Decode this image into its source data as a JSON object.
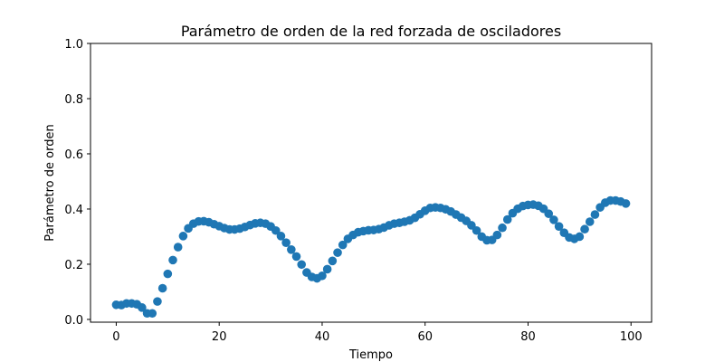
{
  "chart_data": {
    "type": "scatter",
    "title": "Parámetro de orden de la red forzada de osciladores",
    "xlabel": "Tiempo",
    "ylabel": "Parámetro de orden",
    "xlim": [
      -5,
      104
    ],
    "ylim": [
      -0.01,
      1.0
    ],
    "xticks": [
      0,
      20,
      40,
      60,
      80,
      100
    ],
    "xtick_labels": [
      "0",
      "20",
      "40",
      "60",
      "80",
      "100"
    ],
    "yticks": [
      0.0,
      0.2,
      0.4,
      0.6,
      0.8,
      1.0
    ],
    "ytick_labels": [
      "0.0",
      "0.2",
      "0.4",
      "0.6",
      "0.8",
      "1.0"
    ],
    "grid": false,
    "marker_color": "#1f77b4",
    "series": [
      {
        "x": [
          0,
          1,
          2,
          3,
          4,
          5,
          6,
          7,
          8,
          9,
          10,
          11,
          12,
          13,
          14,
          15,
          16,
          17,
          18,
          19,
          20,
          21,
          22,
          23,
          24,
          25,
          26,
          27,
          28,
          29,
          30,
          31,
          32,
          33,
          34,
          35,
          36,
          37,
          38,
          39,
          40,
          41,
          42,
          43,
          44,
          45,
          46,
          47,
          48,
          49,
          50,
          51,
          52,
          53,
          54,
          55,
          56,
          57,
          58,
          59,
          60,
          61,
          62,
          63,
          64,
          65,
          66,
          67,
          68,
          69,
          70,
          71,
          72,
          73,
          74,
          75,
          76,
          77,
          78,
          79,
          80,
          81,
          82,
          83,
          84,
          85,
          86,
          87,
          88,
          89,
          90,
          91,
          92,
          93,
          94,
          95,
          96,
          97,
          98,
          99
        ],
        "y": [
          0.053,
          0.052,
          0.058,
          0.058,
          0.055,
          0.043,
          0.022,
          0.022,
          0.065,
          0.113,
          0.165,
          0.215,
          0.262,
          0.302,
          0.33,
          0.347,
          0.355,
          0.356,
          0.352,
          0.345,
          0.338,
          0.331,
          0.326,
          0.326,
          0.329,
          0.335,
          0.342,
          0.348,
          0.35,
          0.347,
          0.337,
          0.322,
          0.302,
          0.278,
          0.253,
          0.228,
          0.199,
          0.17,
          0.154,
          0.149,
          0.158,
          0.182,
          0.212,
          0.242,
          0.27,
          0.292,
          0.306,
          0.316,
          0.32,
          0.323,
          0.324,
          0.327,
          0.333,
          0.341,
          0.347,
          0.35,
          0.354,
          0.359,
          0.368,
          0.381,
          0.394,
          0.404,
          0.406,
          0.404,
          0.399,
          0.391,
          0.38,
          0.369,
          0.357,
          0.341,
          0.322,
          0.3,
          0.287,
          0.288,
          0.306,
          0.332,
          0.362,
          0.385,
          0.401,
          0.411,
          0.415,
          0.416,
          0.412,
          0.401,
          0.383,
          0.361,
          0.337,
          0.314,
          0.297,
          0.292,
          0.3,
          0.327,
          0.354,
          0.38,
          0.406,
          0.423,
          0.431,
          0.431,
          0.427,
          0.42
        ]
      }
    ]
  }
}
